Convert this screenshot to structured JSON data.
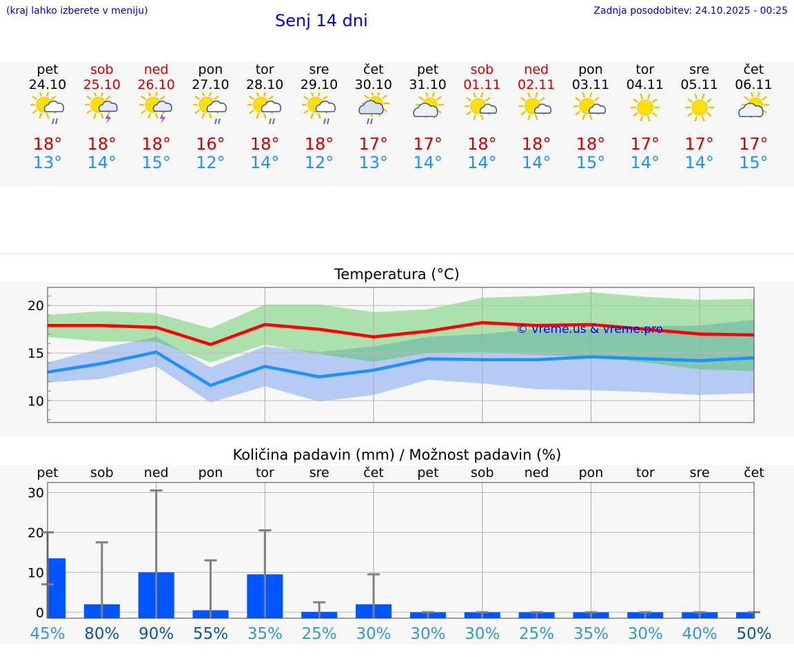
{
  "header": {
    "hint": "(kraj lahko izberete v meniju)",
    "title": "Senj 14 dni",
    "updated": "Zadnja posodobitev: 24.10.2025 - 00:25"
  },
  "days": [
    {
      "name": "pet",
      "date": "24.10",
      "weekend": false,
      "icon": "sun-cloud-rain-icon",
      "tmax": "18°",
      "tmin": "13°",
      "precip_mm": 13.5,
      "precip_max": 20,
      "precip_min": 7,
      "chance": "45%"
    },
    {
      "name": "sob",
      "date": "25.10",
      "weekend": true,
      "icon": "sun-thunderstorm-icon",
      "tmax": "18°",
      "tmin": "14°",
      "precip_mm": 2,
      "precip_max": 17.5,
      "precip_min": 0,
      "chance": "80%"
    },
    {
      "name": "ned",
      "date": "26.10",
      "weekend": true,
      "icon": "sun-thunderstorm-icon",
      "tmax": "18°",
      "tmin": "15°",
      "precip_mm": 10,
      "precip_max": 30.5,
      "precip_min": 0,
      "chance": "90%"
    },
    {
      "name": "pon",
      "date": "27.10",
      "weekend": false,
      "icon": "sun-cloud-rain-icon",
      "tmax": "16°",
      "tmin": "12°",
      "precip_mm": 0.5,
      "precip_max": 13,
      "precip_min": 0,
      "chance": "55%"
    },
    {
      "name": "tor",
      "date": "28.10",
      "weekend": false,
      "icon": "sun-cloud-rain-icon",
      "tmax": "18°",
      "tmin": "14°",
      "precip_mm": 9.5,
      "precip_max": 20.5,
      "precip_min": 0,
      "chance": "35%"
    },
    {
      "name": "sre",
      "date": "29.10",
      "weekend": false,
      "icon": "sun-cloud-rain-icon",
      "tmax": "18°",
      "tmin": "12°",
      "precip_mm": 0.1,
      "precip_max": 2.5,
      "precip_min": 0,
      "chance": "25%"
    },
    {
      "name": "čet",
      "date": "30.10",
      "weekend": false,
      "icon": "cloud-sun-rain-icon",
      "tmax": "17°",
      "tmin": "13°",
      "precip_mm": 2,
      "precip_max": 9.5,
      "precip_min": 0,
      "chance": "30%"
    },
    {
      "name": "pet",
      "date": "31.10",
      "weekend": false,
      "icon": "cloud-sun-icon",
      "tmax": "17°",
      "tmin": "14°",
      "precip_mm": 0,
      "precip_max": 0,
      "precip_min": 0,
      "chance": "30%"
    },
    {
      "name": "sob",
      "date": "01.11",
      "weekend": true,
      "icon": "sun-small-cloud-icon",
      "tmax": "18°",
      "tmin": "14°",
      "precip_mm": 0,
      "precip_max": 0,
      "precip_min": 0,
      "chance": "30%"
    },
    {
      "name": "ned",
      "date": "02.11",
      "weekend": true,
      "icon": "sun-small-cloud-icon",
      "tmax": "18°",
      "tmin": "14°",
      "precip_mm": 0,
      "precip_max": 0,
      "precip_min": 0,
      "chance": "25%"
    },
    {
      "name": "pon",
      "date": "03.11",
      "weekend": false,
      "icon": "sun-small-cloud-icon",
      "tmax": "18°",
      "tmin": "15°",
      "precip_mm": 0,
      "precip_max": 0,
      "precip_min": 0,
      "chance": "35%"
    },
    {
      "name": "tor",
      "date": "04.11",
      "weekend": false,
      "icon": "sun-icon",
      "tmax": "17°",
      "tmin": "14°",
      "precip_mm": 0,
      "precip_max": 0,
      "precip_min": 0,
      "chance": "30%"
    },
    {
      "name": "sre",
      "date": "05.11",
      "weekend": false,
      "icon": "sun-icon",
      "tmax": "17°",
      "tmin": "14°",
      "precip_mm": 0,
      "precip_max": 0,
      "precip_min": 0,
      "chance": "40%"
    },
    {
      "name": "čet",
      "date": "06.11",
      "weekend": false,
      "icon": "cloud-sun-icon",
      "tmax": "17°",
      "tmin": "15°",
      "precip_mm": 0,
      "precip_max": 0,
      "precip_min": 0,
      "chance": "50%"
    }
  ],
  "chart_data": [
    {
      "type": "line",
      "title": "Temperatura (°C)",
      "ylim": [
        7.7,
        21.9
      ],
      "yticks": [
        10,
        15,
        20
      ],
      "watermark": "© vreme.us & vreme.pro",
      "series": [
        {
          "name": "max",
          "color": "#ff0000",
          "values": [
            17.9,
            17.9,
            17.7,
            15.9,
            18.0,
            17.5,
            16.7,
            17.3,
            18.2,
            17.9,
            18.0,
            17.5,
            17.0,
            16.9
          ]
        },
        {
          "name": "max-upper",
          "values": [
            19.0,
            19.4,
            19.2,
            17.6,
            20.1,
            20.1,
            19.3,
            19.6,
            20.8,
            21.0,
            21.4,
            20.9,
            20.6,
            20.7
          ]
        },
        {
          "name": "max-lower",
          "values": [
            16.7,
            16.2,
            16.2,
            14.0,
            15.9,
            14.9,
            14.1,
            15.0,
            15.1,
            14.8,
            14.6,
            14.0,
            13.3,
            13.1
          ]
        },
        {
          "name": "min",
          "color": "#1e90ff",
          "values": [
            13.0,
            13.9,
            15.1,
            11.6,
            13.6,
            12.5,
            13.2,
            14.4,
            14.3,
            14.3,
            14.6,
            14.4,
            14.2,
            14.5
          ]
        },
        {
          "name": "min-upper",
          "values": [
            14.0,
            15.5,
            16.7,
            13.5,
            15.7,
            15.1,
            15.7,
            16.7,
            17.0,
            17.5,
            17.5,
            17.8,
            17.9,
            18.5
          ]
        },
        {
          "name": "min-lower",
          "values": [
            11.9,
            12.3,
            13.6,
            9.8,
            11.5,
            9.9,
            10.6,
            12.2,
            11.8,
            11.2,
            11.1,
            10.9,
            10.6,
            10.8
          ]
        }
      ]
    },
    {
      "type": "bar",
      "title": "Količina padavin (mm) / Možnost padavin (%)",
      "ylim": [
        -1.5,
        32.5
      ],
      "yticks": [
        0,
        10,
        20,
        30
      ],
      "bar_color": "#0055ff",
      "errorbar_color": "#808080",
      "chance_colors": {
        "low": "#3399cc",
        "high": "#115599"
      }
    }
  ]
}
